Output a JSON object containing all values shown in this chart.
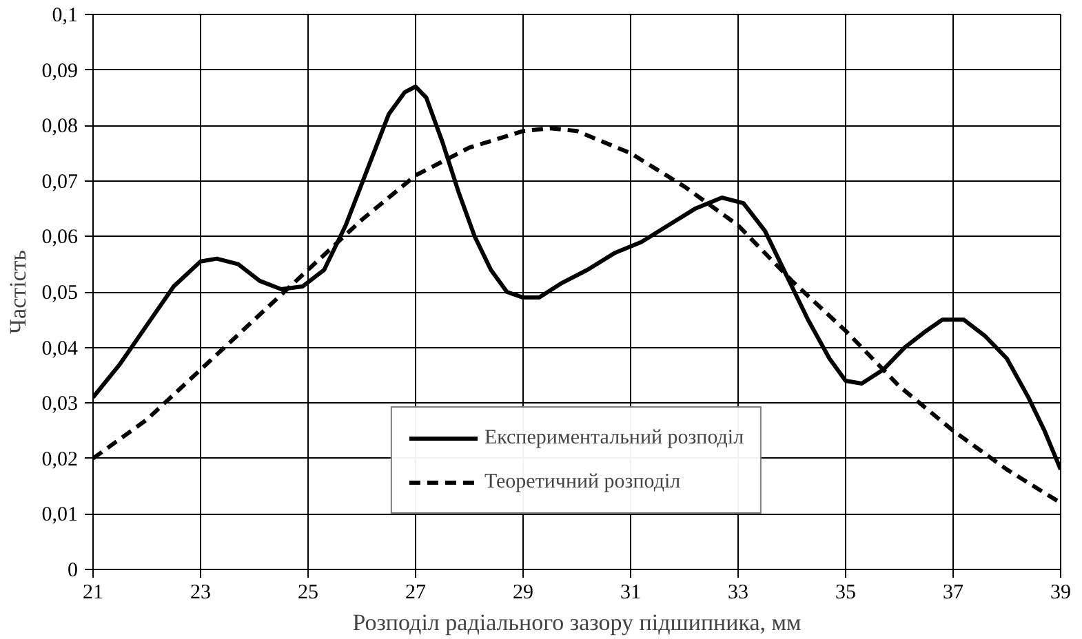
{
  "chart_data": {
    "type": "line",
    "xlabel": "Розподіл радіального зазору підшипника, мм",
    "ylabel": "Частість",
    "xlim": [
      21,
      39
    ],
    "xticks": [
      21,
      23,
      25,
      27,
      29,
      31,
      33,
      35,
      37,
      39
    ],
    "ylim": [
      0,
      0.1
    ],
    "yticks": [
      0,
      {
        "value": 0.01,
        "label": "0,01"
      },
      {
        "value": 0.02,
        "label": "0,02"
      },
      {
        "value": 0.03,
        "label": "0,03"
      },
      {
        "value": 0.04,
        "label": "0,04"
      },
      {
        "value": 0.05,
        "label": "0,05"
      },
      {
        "value": 0.06,
        "label": "0,06"
      },
      {
        "value": 0.07,
        "label": "0,07"
      },
      {
        "value": 0.08,
        "label": "0,08"
      },
      {
        "value": 0.09,
        "label": "0,09"
      },
      {
        "value": 0.1,
        "label": "0,1"
      }
    ],
    "grid": true,
    "legend": "bottom",
    "marker": "none",
    "series": [
      {
        "name": "Експериментальний розподіл",
        "color": "#000000",
        "line_style": "solid",
        "x": [
          21,
          21.5,
          22,
          22.5,
          23,
          23.3,
          23.7,
          24.1,
          24.5,
          24.9,
          25.3,
          25.7,
          26.1,
          26.5,
          26.8,
          27,
          27.2,
          27.5,
          27.8,
          28.1,
          28.4,
          28.7,
          29,
          29.3,
          29.7,
          30.2,
          30.7,
          31.2,
          31.7,
          32.2,
          32.7,
          33.1,
          33.5,
          33.9,
          34.3,
          34.7,
          35,
          35.3,
          35.7,
          36.1,
          36.5,
          36.8,
          37.2,
          37.6,
          38,
          38.4,
          38.7,
          39
        ],
        "values": [
          0.031,
          0.037,
          0.044,
          0.051,
          0.0555,
          0.056,
          0.055,
          0.052,
          0.0505,
          0.051,
          0.054,
          0.062,
          0.072,
          0.082,
          0.086,
          0.087,
          0.085,
          0.077,
          0.068,
          0.06,
          0.054,
          0.05,
          0.049,
          0.049,
          0.0515,
          0.054,
          0.057,
          0.059,
          0.062,
          0.065,
          0.067,
          0.066,
          0.061,
          0.053,
          0.045,
          0.038,
          0.034,
          0.0335,
          0.036,
          0.04,
          0.043,
          0.045,
          0.045,
          0.042,
          0.038,
          0.031,
          0.025,
          0.018
        ]
      },
      {
        "name": "Теоретичний розподіл",
        "color": "#000000",
        "line_style": "dashed",
        "x": [
          21,
          22,
          23,
          24,
          25,
          26,
          27,
          28,
          29,
          29.5,
          30,
          31,
          32,
          33,
          34,
          35,
          36,
          37,
          38,
          39
        ],
        "values": [
          0.02,
          0.027,
          0.036,
          0.045,
          0.054,
          0.063,
          0.071,
          0.076,
          0.079,
          0.0795,
          0.079,
          0.075,
          0.069,
          0.062,
          0.052,
          0.043,
          0.033,
          0.025,
          0.018,
          0.012
        ]
      }
    ]
  }
}
